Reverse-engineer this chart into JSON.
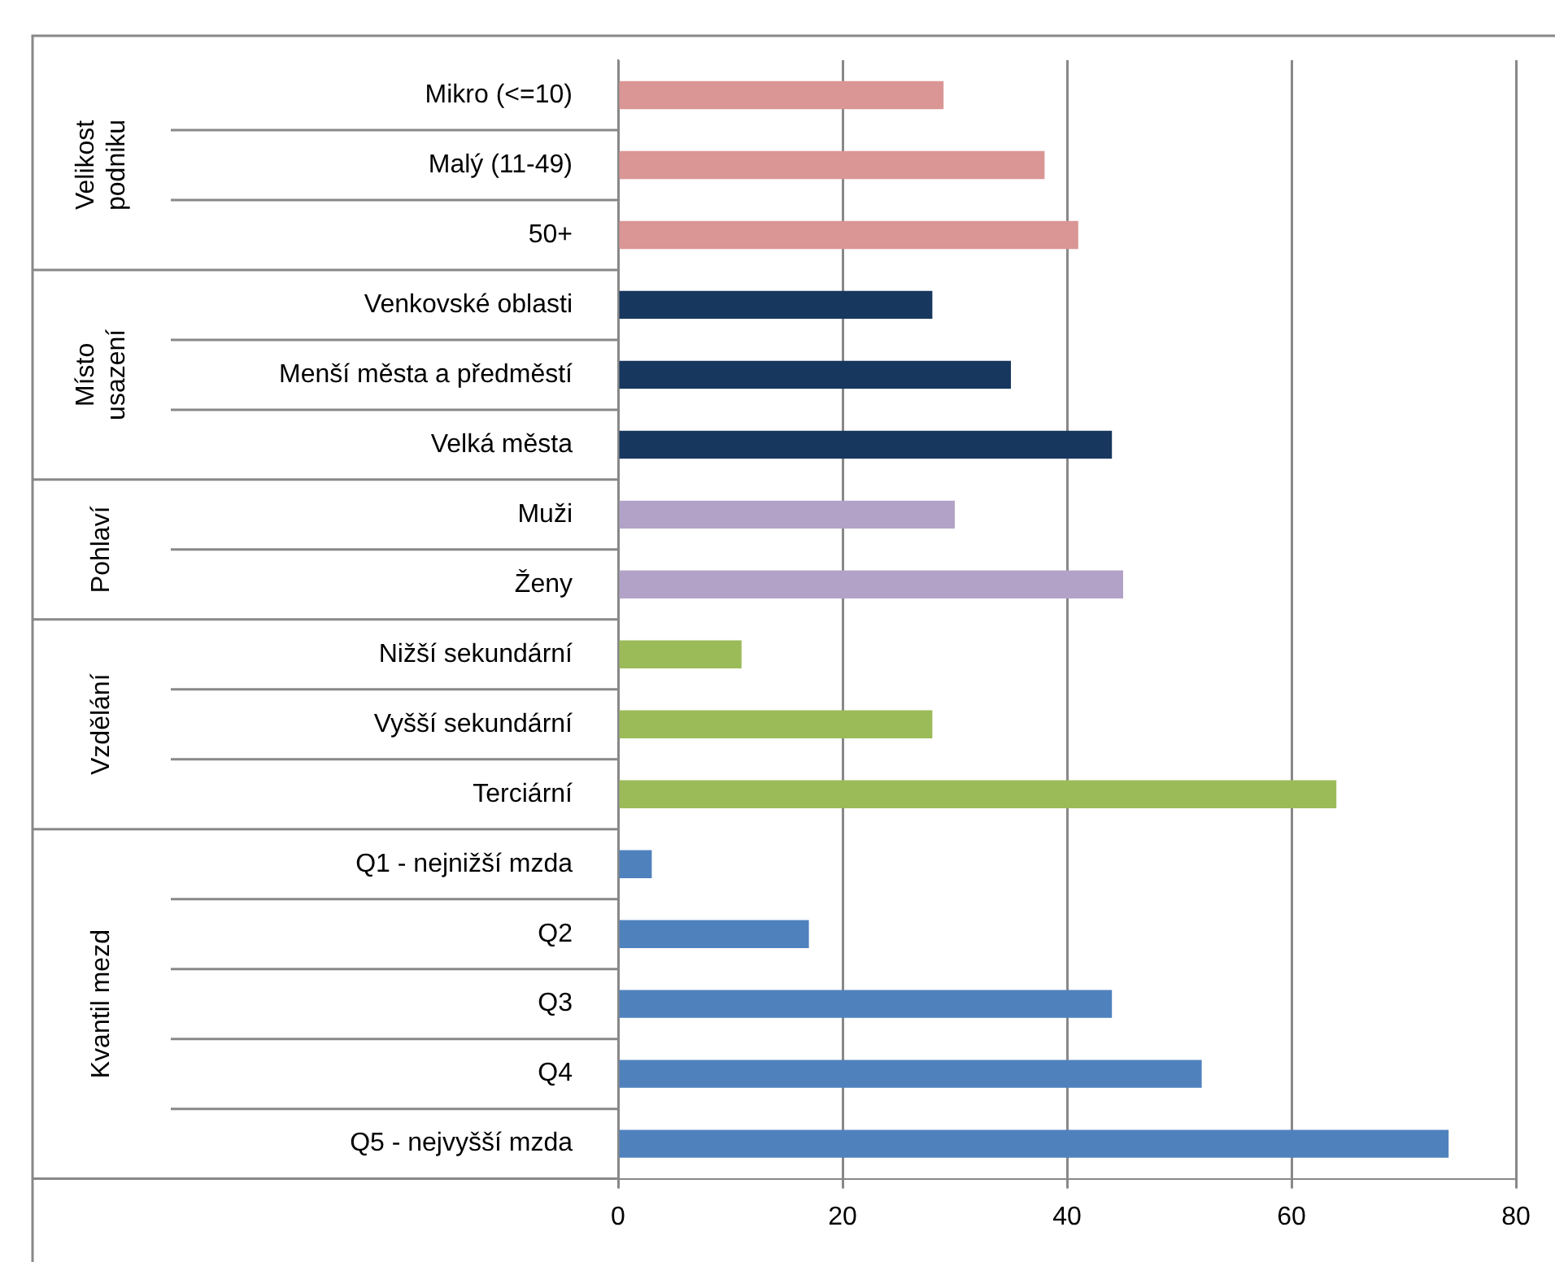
{
  "chart_data": {
    "type": "bar",
    "orientation": "horizontal",
    "categories": [
      "Mikro (<=10)",
      "Malý (11-49)",
      "50+",
      "Venkovské oblasti",
      "Menší města a předměstí",
      "Velká města",
      "Muži",
      "Ženy",
      "Nižší sekundární",
      "Vyšší sekundární",
      "Terciární",
      "Q1 - nejnižší mzda",
      "Q2",
      "Q3",
      "Q4",
      "Q5 - nejvyšší mzda"
    ],
    "values": [
      29,
      38,
      41,
      28,
      35,
      44,
      30,
      45,
      11,
      28,
      64,
      3,
      17,
      44,
      52,
      74
    ],
    "colors": [
      "#d99694",
      "#d99694",
      "#d99694",
      "#17375e",
      "#17375e",
      "#17375e",
      "#b3a2c7",
      "#b3a2c7",
      "#9bbb59",
      "#9bbb59",
      "#9bbb59",
      "#4f81bd",
      "#4f81bd",
      "#4f81bd",
      "#4f81bd",
      "#4f81bd"
    ],
    "annotations": [
      "Velikost podniku",
      "Místo usazení",
      "Pohlaví",
      "Vzdělání",
      "Kvantil mezd"
    ],
    "xlim": [
      0,
      80
    ],
    "xticks": [
      0,
      20,
      40,
      60,
      80
    ],
    "grid": "x",
    "legend": false
  }
}
